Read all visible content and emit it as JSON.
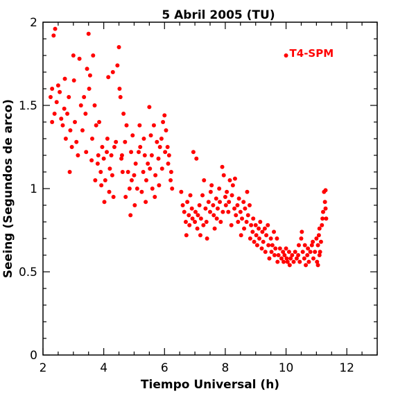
{
  "chart_data": {
    "type": "scatter",
    "title": "5 Abril 2005 (TU)",
    "xlabel": "Tiempo Universal (h)",
    "ylabel": "Seeing (Segundos de arco)",
    "xlim": [
      2,
      13
    ],
    "ylim": [
      0,
      2
    ],
    "xticks": [
      2,
      4,
      6,
      8,
      10,
      12
    ],
    "xtick_labels": [
      "2",
      "4",
      "6",
      "8",
      "10",
      "12"
    ],
    "yticks": [
      0,
      0.5,
      1,
      1.5,
      2
    ],
    "ytick_labels": [
      "0",
      "0.5",
      "1",
      "1.5",
      "2"
    ],
    "grid": false,
    "legend_position": "top-right",
    "marker_color": "#ff0000",
    "series": [
      {
        "name": "T4-SPM",
        "legend_marker": {
          "x": 10.0,
          "y": 1.8
        },
        "points": [
          [
            2.25,
            1.55
          ],
          [
            2.3,
            1.6
          ],
          [
            2.35,
            1.92
          ],
          [
            2.4,
            1.96
          ],
          [
            2.3,
            1.4
          ],
          [
            2.38,
            1.45
          ],
          [
            2.45,
            1.52
          ],
          [
            2.5,
            1.62
          ],
          [
            2.55,
            1.58
          ],
          [
            2.6,
            1.42
          ],
          [
            2.65,
            1.38
          ],
          [
            2.7,
            1.48
          ],
          [
            2.72,
            1.66
          ],
          [
            2.75,
            1.3
          ],
          [
            2.8,
            1.45
          ],
          [
            2.85,
            1.55
          ],
          [
            2.88,
            1.1
          ],
          [
            2.9,
            1.35
          ],
          [
            2.95,
            1.25
          ],
          [
            3.0,
            1.8
          ],
          [
            3.02,
            1.65
          ],
          [
            3.05,
            1.4
          ],
          [
            3.1,
            1.28
          ],
          [
            3.15,
            1.2
          ],
          [
            3.2,
            1.78
          ],
          [
            3.25,
            1.5
          ],
          [
            3.3,
            1.35
          ],
          [
            3.35,
            1.55
          ],
          [
            3.4,
            1.45
          ],
          [
            3.42,
            1.22
          ],
          [
            3.45,
            1.72
          ],
          [
            3.5,
            1.93
          ],
          [
            3.52,
            1.6
          ],
          [
            3.55,
            1.68
          ],
          [
            3.6,
            1.17
          ],
          [
            3.62,
            1.3
          ],
          [
            3.65,
            1.8
          ],
          [
            3.7,
            1.5
          ],
          [
            3.72,
            1.05
          ],
          [
            3.75,
            1.38
          ],
          [
            3.8,
            1.15
          ],
          [
            3.82,
            1.2
          ],
          [
            3.85,
            1.4
          ],
          [
            3.9,
            1.1
          ],
          [
            3.92,
            1.02
          ],
          [
            3.95,
            1.25
          ],
          [
            4.0,
            1.18
          ],
          [
            4.02,
            0.92
          ],
          [
            4.05,
            1.05
          ],
          [
            4.1,
            1.22
          ],
          [
            4.12,
            1.3
          ],
          [
            4.15,
            1.67
          ],
          [
            4.18,
            0.98
          ],
          [
            4.2,
            1.12
          ],
          [
            4.25,
            1.2
          ],
          [
            4.28,
            1.08
          ],
          [
            4.3,
            1.7
          ],
          [
            4.32,
            0.95
          ],
          [
            4.35,
            1.25
          ],
          [
            4.4,
            1.28
          ],
          [
            4.45,
            1.74
          ],
          [
            4.5,
            1.85
          ],
          [
            4.52,
            1.6
          ],
          [
            4.55,
            1.55
          ],
          [
            4.58,
            1.18
          ],
          [
            4.6,
            1.2
          ],
          [
            4.62,
            1.1
          ],
          [
            4.65,
            1.45
          ],
          [
            4.7,
            1.28
          ],
          [
            4.72,
            0.95
          ],
          [
            4.75,
            1.38
          ],
          [
            4.8,
            1.1
          ],
          [
            4.85,
            1.0
          ],
          [
            4.88,
            0.84
          ],
          [
            4.9,
            1.22
          ],
          [
            4.92,
            1.05
          ],
          [
            4.95,
            1.32
          ],
          [
            5.0,
            1.08
          ],
          [
            5.02,
            0.9
          ],
          [
            5.05,
            1.15
          ],
          [
            5.1,
            1.0
          ],
          [
            5.15,
            1.22
          ],
          [
            5.18,
            1.38
          ],
          [
            5.2,
            1.25
          ],
          [
            5.25,
            0.98
          ],
          [
            5.3,
            1.1
          ],
          [
            5.32,
            1.3
          ],
          [
            5.35,
            1.2
          ],
          [
            5.38,
            0.92
          ],
          [
            5.4,
            1.05
          ],
          [
            5.45,
            1.15
          ],
          [
            5.5,
            1.49
          ],
          [
            5.52,
            1.12
          ],
          [
            5.55,
            1.32
          ],
          [
            5.58,
            1.2
          ],
          [
            5.6,
            1.0
          ],
          [
            5.65,
            1.38
          ],
          [
            5.68,
            0.95
          ],
          [
            5.7,
            1.08
          ],
          [
            5.75,
            1.28
          ],
          [
            5.8,
            1.18
          ],
          [
            5.82,
            1.02
          ],
          [
            5.85,
            1.25
          ],
          [
            5.9,
            1.3
          ],
          [
            5.92,
            1.12
          ],
          [
            5.95,
            1.4
          ],
          [
            6.0,
            1.44
          ],
          [
            6.02,
            1.22
          ],
          [
            6.05,
            1.35
          ],
          [
            6.1,
            1.25
          ],
          [
            6.12,
            1.15
          ],
          [
            6.15,
            1.2
          ],
          [
            6.2,
            1.05
          ],
          [
            6.22,
            1.1
          ],
          [
            6.25,
            1.0
          ],
          [
            6.55,
            0.98
          ],
          [
            6.6,
            0.9
          ],
          [
            6.65,
            0.86
          ],
          [
            6.7,
            0.8
          ],
          [
            6.72,
            0.72
          ],
          [
            6.75,
            0.92
          ],
          [
            6.8,
            0.84
          ],
          [
            6.82,
            0.78
          ],
          [
            6.85,
            0.96
          ],
          [
            6.9,
            0.88
          ],
          [
            6.92,
            0.82
          ],
          [
            6.95,
            1.22
          ],
          [
            7.0,
            0.8
          ],
          [
            7.02,
            0.86
          ],
          [
            7.05,
            1.18
          ],
          [
            7.08,
            0.76
          ],
          [
            7.1,
            0.84
          ],
          [
            7.15,
            0.9
          ],
          [
            7.18,
            0.72
          ],
          [
            7.2,
            0.82
          ],
          [
            7.25,
            0.96
          ],
          [
            7.28,
            0.78
          ],
          [
            7.3,
            1.05
          ],
          [
            7.35,
            0.88
          ],
          [
            7.38,
            0.8
          ],
          [
            7.4,
            0.7
          ],
          [
            7.45,
            0.92
          ],
          [
            7.5,
            0.86
          ],
          [
            7.52,
            0.98
          ],
          [
            7.55,
            1.02
          ],
          [
            7.6,
            0.9
          ],
          [
            7.62,
            0.84
          ],
          [
            7.65,
            0.76
          ],
          [
            7.7,
            0.94
          ],
          [
            7.72,
            0.82
          ],
          [
            7.75,
            0.88
          ],
          [
            7.8,
            1.0
          ],
          [
            7.82,
            0.92
          ],
          [
            7.85,
            0.8
          ],
          [
            7.9,
            1.13
          ],
          [
            7.92,
            0.86
          ],
          [
            7.95,
            1.08
          ],
          [
            8.0,
            0.95
          ],
          [
            8.02,
            0.9
          ],
          [
            8.05,
            0.98
          ],
          [
            8.1,
            0.86
          ],
          [
            8.12,
            0.92
          ],
          [
            8.15,
            1.05
          ],
          [
            8.2,
            0.78
          ],
          [
            8.22,
            0.96
          ],
          [
            8.25,
            1.02
          ],
          [
            8.3,
            0.88
          ],
          [
            8.32,
            1.06
          ],
          [
            8.35,
            0.84
          ],
          [
            8.4,
            0.9
          ],
          [
            8.42,
            0.8
          ],
          [
            8.45,
            0.94
          ],
          [
            8.5,
            0.86
          ],
          [
            8.52,
            0.72
          ],
          [
            8.55,
            0.82
          ],
          [
            8.6,
            0.92
          ],
          [
            8.62,
            0.76
          ],
          [
            8.65,
            0.88
          ],
          [
            8.7,
            0.8
          ],
          [
            8.72,
            0.98
          ],
          [
            8.75,
            0.84
          ],
          [
            8.8,
            0.9
          ],
          [
            8.82,
            0.7
          ],
          [
            8.85,
            0.78
          ],
          [
            8.9,
            0.74
          ],
          [
            8.92,
            0.82
          ],
          [
            8.95,
            0.68
          ],
          [
            9.0,
            0.78
          ],
          [
            9.02,
            0.72
          ],
          [
            9.05,
            0.66
          ],
          [
            9.1,
            0.76
          ],
          [
            9.12,
            0.7
          ],
          [
            9.15,
            0.8
          ],
          [
            9.2,
            0.64
          ],
          [
            9.22,
            0.74
          ],
          [
            9.25,
            0.68
          ],
          [
            9.3,
            0.76
          ],
          [
            9.32,
            0.62
          ],
          [
            9.35,
            0.72
          ],
          [
            9.4,
            0.78
          ],
          [
            9.42,
            0.66
          ],
          [
            9.45,
            0.58
          ],
          [
            9.5,
            0.7
          ],
          [
            9.52,
            0.62
          ],
          [
            9.55,
            0.66
          ],
          [
            9.6,
            0.74
          ],
          [
            9.62,
            0.6
          ],
          [
            9.65,
            0.64
          ],
          [
            9.7,
            0.7
          ],
          [
            9.72,
            0.56
          ],
          [
            9.75,
            0.6
          ],
          [
            9.8,
            0.64
          ],
          [
            9.85,
            0.58
          ],
          [
            9.9,
            0.62
          ],
          [
            9.92,
            0.56
          ],
          [
            9.95,
            0.6
          ],
          [
            10.0,
            0.64
          ],
          [
            10.02,
            0.58
          ],
          [
            10.05,
            0.56
          ],
          [
            10.1,
            0.62
          ],
          [
            10.12,
            0.54
          ],
          [
            10.15,
            0.58
          ],
          [
            10.2,
            0.6
          ],
          [
            10.25,
            0.56
          ],
          [
            10.3,
            0.62
          ],
          [
            10.35,
            0.58
          ],
          [
            10.4,
            0.6
          ],
          [
            10.42,
            0.66
          ],
          [
            10.45,
            0.56
          ],
          [
            10.5,
            0.7
          ],
          [
            10.52,
            0.74
          ],
          [
            10.55,
            0.62
          ],
          [
            10.6,
            0.58
          ],
          [
            10.62,
            0.66
          ],
          [
            10.65,
            0.54
          ],
          [
            10.7,
            0.6
          ],
          [
            10.72,
            0.64
          ],
          [
            10.75,
            0.56
          ],
          [
            10.8,
            0.62
          ],
          [
            10.85,
            0.66
          ],
          [
            10.88,
            0.68
          ],
          [
            10.9,
            0.58
          ],
          [
            10.95,
            0.62
          ],
          [
            11.0,
            0.7
          ],
          [
            11.02,
            0.56
          ],
          [
            11.05,
            0.66
          ],
          [
            11.08,
            0.72
          ],
          [
            11.1,
            0.76
          ],
          [
            11.12,
            0.62
          ],
          [
            11.15,
            0.68
          ],
          [
            11.18,
            0.78
          ],
          [
            11.2,
            0.82
          ],
          [
            11.22,
            0.86
          ],
          [
            11.25,
            0.98
          ],
          [
            11.28,
            0.92
          ],
          [
            11.3,
            0.88
          ],
          [
            11.32,
            0.82
          ],
          [
            11.3,
            0.99
          ],
          [
            11.05,
            0.54
          ],
          [
            11.1,
            0.6
          ]
        ]
      }
    ]
  }
}
